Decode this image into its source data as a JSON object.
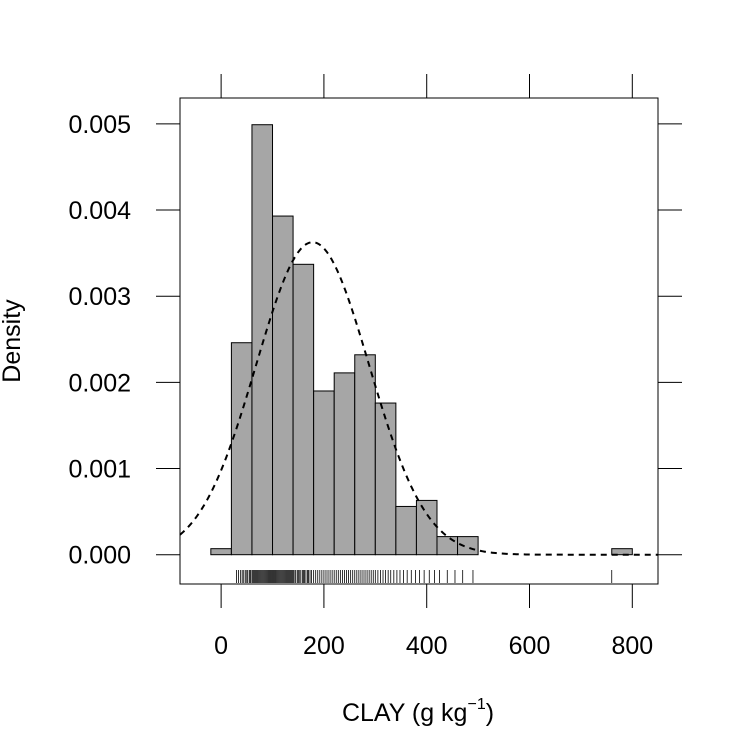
{
  "chart_data": {
    "type": "bar",
    "xlabel": "CLAY (g kg",
    "xlabel_sup": "−1",
    "xlabel_suffix": ")",
    "ylabel": "Density",
    "xlim": [
      -80,
      850
    ],
    "ylim": [
      -0.00034,
      0.0053
    ],
    "x_ticks": [
      0,
      200,
      400,
      600,
      800
    ],
    "x_tick_labels": [
      "0",
      "200",
      "400",
      "600",
      "800"
    ],
    "y_ticks": [
      0.0,
      0.001,
      0.002,
      0.003,
      0.004,
      0.005
    ],
    "y_tick_labels": [
      "0.000",
      "0.001",
      "0.002",
      "0.003",
      "0.004",
      "0.005"
    ],
    "bar_color": "#a6a6a6",
    "bins": [
      {
        "x0": -20,
        "x1": 20,
        "density": 7e-05
      },
      {
        "x0": 20,
        "x1": 60,
        "density": 0.00246
      },
      {
        "x0": 60,
        "x1": 100,
        "density": 0.00499
      },
      {
        "x0": 100,
        "x1": 140,
        "density": 0.00393
      },
      {
        "x0": 140,
        "x1": 180,
        "density": 0.00337
      },
      {
        "x0": 180,
        "x1": 220,
        "density": 0.0019
      },
      {
        "x0": 220,
        "x1": 260,
        "density": 0.00211
      },
      {
        "x0": 260,
        "x1": 300,
        "density": 0.00232
      },
      {
        "x0": 300,
        "x1": 340,
        "density": 0.00176
      },
      {
        "x0": 340,
        "x1": 380,
        "density": 0.00056
      },
      {
        "x0": 380,
        "x1": 420,
        "density": 0.00063
      },
      {
        "x0": 420,
        "x1": 460,
        "density": 0.00021
      },
      {
        "x0": 460,
        "x1": 500,
        "density": 0.00021
      },
      {
        "x0": 760,
        "x1": 800,
        "density": 7e-05
      }
    ],
    "normal_curve": {
      "mean": 178,
      "sd": 110
    },
    "rug": [
      30,
      34,
      38,
      41,
      44,
      47,
      50,
      52,
      55,
      57,
      60,
      62,
      64,
      66,
      68,
      70,
      72,
      74,
      76,
      78,
      80,
      82,
      84,
      86,
      88,
      90,
      92,
      94,
      96,
      98,
      100,
      102,
      104,
      106,
      108,
      110,
      112,
      114,
      116,
      118,
      120,
      122,
      124,
      126,
      128,
      130,
      132,
      134,
      136,
      138,
      140,
      142,
      145,
      148,
      150,
      152,
      155,
      158,
      160,
      162,
      165,
      168,
      170,
      173,
      176,
      180,
      184,
      188,
      192,
      196,
      200,
      204,
      208,
      212,
      216,
      220,
      224,
      228,
      232,
      236,
      240,
      244,
      248,
      252,
      256,
      260,
      264,
      268,
      272,
      276,
      280,
      284,
      288,
      292,
      296,
      300,
      305,
      310,
      315,
      320,
      325,
      330,
      336,
      342,
      348,
      355,
      362,
      370,
      378,
      386,
      395,
      405,
      415,
      425,
      440,
      455,
      470,
      490,
      760
    ]
  }
}
